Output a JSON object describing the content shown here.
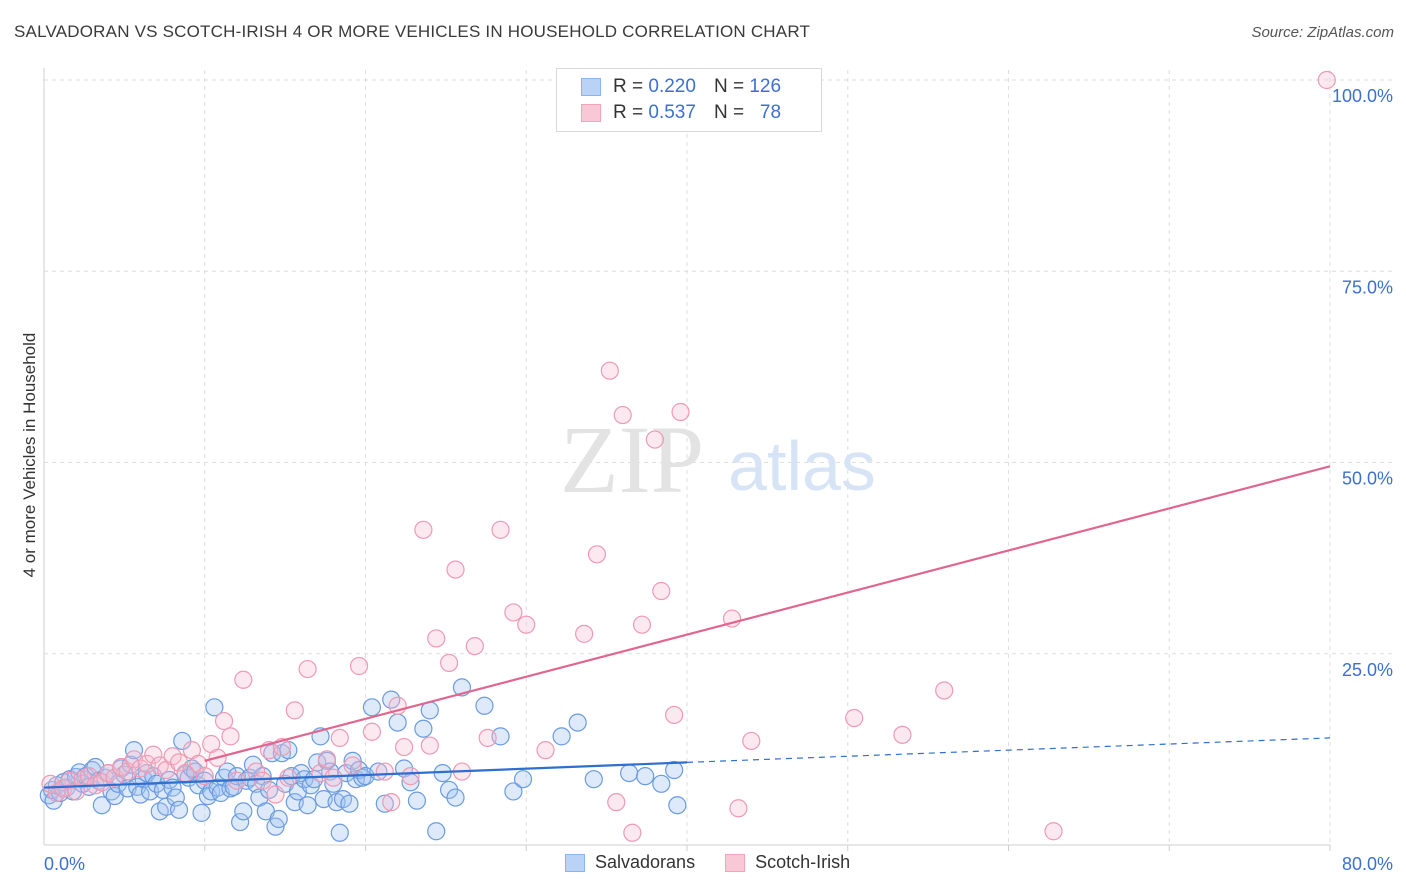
{
  "title": "SALVADORAN VS SCOTCH-IRISH 4 OR MORE VEHICLES IN HOUSEHOLD CORRELATION CHART",
  "source": "Source: ZipAtlas.com",
  "watermark": {
    "zip": "ZIP",
    "atlas": "atlas"
  },
  "legend": {
    "r_label": "R =",
    "n_label": "N =",
    "rows": [
      {
        "r": "0.220",
        "n": "126",
        "color": "#8ab4ef",
        "fill": "#b9d2f5"
      },
      {
        "r": "0.537",
        "n": "78",
        "color": "#f0a5bc",
        "fill": "#f9c8d6"
      }
    ]
  },
  "colors": {
    "salvadoran_stroke": "#6a9be0",
    "salvadoran_fill": "rgba(160,195,240,0.35)",
    "salvadoran_line": "#2f6fcf",
    "scotch_stroke": "#ee9ab3",
    "scotch_fill": "rgba(247,190,208,0.35)",
    "scotch_line": "#e0668e",
    "tick_text": "#3d6fd1",
    "grid": "#dedede"
  },
  "chart_data": {
    "type": "scatter",
    "title": "SALVADORAN VS SCOTCH-IRISH 4 OR MORE VEHICLES IN HOUSEHOLD CORRELATION CHART",
    "xlabel": "",
    "ylabel": "4 or more Vehicles in Household",
    "xlim": [
      0,
      80
    ],
    "ylim": [
      0,
      100
    ],
    "x_tick_labels": [
      {
        "value": 0,
        "label": "0.0%"
      },
      {
        "value": 80,
        "label": "80.0%"
      }
    ],
    "y_tick_labels": [
      {
        "value": 100,
        "label": "100.0%"
      },
      {
        "value": 75,
        "label": "75.0%"
      },
      {
        "value": 50,
        "label": "50.0%"
      },
      {
        "value": 25,
        "label": "25.0%"
      }
    ],
    "grid": true,
    "legend_position": "top-center",
    "series": [
      {
        "name": "Salvadorans",
        "trend": {
          "x_start": 0,
          "y_start": 7.5,
          "x_end": 40,
          "y_end": 10.8,
          "dashed_to_x": 80,
          "dashed_to_y": 14.0
        },
        "points": [
          [
            0.3,
            6.5
          ],
          [
            0.5,
            7.2
          ],
          [
            0.6,
            5.8
          ],
          [
            0.8,
            7.8
          ],
          [
            1.0,
            6.8
          ],
          [
            1.2,
            8.2
          ],
          [
            1.4,
            7.5
          ],
          [
            1.6,
            8.6
          ],
          [
            1.8,
            7.0
          ],
          [
            2.0,
            8.9
          ],
          [
            2.2,
            9.5
          ],
          [
            2.4,
            8.0
          ],
          [
            2.6,
            9.0
          ],
          [
            2.8,
            7.6
          ],
          [
            3.0,
            9.8
          ],
          [
            3.2,
            10.2
          ],
          [
            3.4,
            8.4
          ],
          [
            3.6,
            5.2
          ],
          [
            3.8,
            8.8
          ],
          [
            4.0,
            9.4
          ],
          [
            4.2,
            7.0
          ],
          [
            4.4,
            6.4
          ],
          [
            4.6,
            8.0
          ],
          [
            4.8,
            10.0
          ],
          [
            5.0,
            9.2
          ],
          [
            5.2,
            7.4
          ],
          [
            5.4,
            10.5
          ],
          [
            5.6,
            12.4
          ],
          [
            5.8,
            7.6
          ],
          [
            6.0,
            6.6
          ],
          [
            6.2,
            8.6
          ],
          [
            6.4,
            9.4
          ],
          [
            6.6,
            7.0
          ],
          [
            6.8,
            9.0
          ],
          [
            7.0,
            8.0
          ],
          [
            7.2,
            4.4
          ],
          [
            7.4,
            7.2
          ],
          [
            7.6,
            5.0
          ],
          [
            7.8,
            8.5
          ],
          [
            8.0,
            7.5
          ],
          [
            8.2,
            6.2
          ],
          [
            8.4,
            4.6
          ],
          [
            8.6,
            13.6
          ],
          [
            8.8,
            9.2
          ],
          [
            9.0,
            8.8
          ],
          [
            9.2,
            10.0
          ],
          [
            9.4,
            9.6
          ],
          [
            9.6,
            7.8
          ],
          [
            9.8,
            4.2
          ],
          [
            10.0,
            8.4
          ],
          [
            10.2,
            6.4
          ],
          [
            10.4,
            7.0
          ],
          [
            10.6,
            18.0
          ],
          [
            10.8,
            7.5
          ],
          [
            11.0,
            6.8
          ],
          [
            11.2,
            8.8
          ],
          [
            11.4,
            9.6
          ],
          [
            11.6,
            7.4
          ],
          [
            11.8,
            7.6
          ],
          [
            12.0,
            9.0
          ],
          [
            12.2,
            3.0
          ],
          [
            12.4,
            4.4
          ],
          [
            12.6,
            8.4
          ],
          [
            12.8,
            8.8
          ],
          [
            13.0,
            10.5
          ],
          [
            13.2,
            8.0
          ],
          [
            13.4,
            6.2
          ],
          [
            13.6,
            9.0
          ],
          [
            13.8,
            4.4
          ],
          [
            14.0,
            7.2
          ],
          [
            14.2,
            12.0
          ],
          [
            14.4,
            2.4
          ],
          [
            14.6,
            3.4
          ],
          [
            14.8,
            12.0
          ],
          [
            15.0,
            8.0
          ],
          [
            15.2,
            12.4
          ],
          [
            15.4,
            9.0
          ],
          [
            15.6,
            5.6
          ],
          [
            15.8,
            7.0
          ],
          [
            16.0,
            9.4
          ],
          [
            16.2,
            8.6
          ],
          [
            16.4,
            5.2
          ],
          [
            16.6,
            7.8
          ],
          [
            16.8,
            8.6
          ],
          [
            17.0,
            10.8
          ],
          [
            17.2,
            14.2
          ],
          [
            17.4,
            6.0
          ],
          [
            17.6,
            11.0
          ],
          [
            17.8,
            9.6
          ],
          [
            18.0,
            8.0
          ],
          [
            18.2,
            5.6
          ],
          [
            18.4,
            1.6
          ],
          [
            18.6,
            6.0
          ],
          [
            18.8,
            9.4
          ],
          [
            19.0,
            5.4
          ],
          [
            19.2,
            11.0
          ],
          [
            19.4,
            8.6
          ],
          [
            19.6,
            9.8
          ],
          [
            19.8,
            8.8
          ],
          [
            20.0,
            9.0
          ],
          [
            20.4,
            18.0
          ],
          [
            20.8,
            9.6
          ],
          [
            21.2,
            5.4
          ],
          [
            21.6,
            19.0
          ],
          [
            22.0,
            16.0
          ],
          [
            22.4,
            10.0
          ],
          [
            22.8,
            8.2
          ],
          [
            23.2,
            5.8
          ],
          [
            23.6,
            15.2
          ],
          [
            24.0,
            17.6
          ],
          [
            24.4,
            1.8
          ],
          [
            24.8,
            9.4
          ],
          [
            25.2,
            7.2
          ],
          [
            25.6,
            6.2
          ],
          [
            26.0,
            20.6
          ],
          [
            27.4,
            18.2
          ],
          [
            28.4,
            14.2
          ],
          [
            29.2,
            7.0
          ],
          [
            29.8,
            8.6
          ],
          [
            32.2,
            14.2
          ],
          [
            33.2,
            16.0
          ],
          [
            34.2,
            8.6
          ],
          [
            36.4,
            9.4
          ],
          [
            37.4,
            9.0
          ],
          [
            38.4,
            8.0
          ],
          [
            39.2,
            9.8
          ],
          [
            39.4,
            5.2
          ]
        ]
      },
      {
        "name": "Scotch-Irish",
        "trend": {
          "x_start": 10.0,
          "y_start": 11.0,
          "x_end": 80,
          "y_end": 49.5
        },
        "points": [
          [
            0.4,
            8.0
          ],
          [
            0.8,
            6.8
          ],
          [
            1.2,
            7.4
          ],
          [
            1.6,
            8.4
          ],
          [
            2.0,
            7.0
          ],
          [
            2.4,
            8.6
          ],
          [
            2.8,
            9.0
          ],
          [
            3.2,
            7.8
          ],
          [
            3.6,
            8.2
          ],
          [
            4.0,
            9.4
          ],
          [
            4.4,
            8.8
          ],
          [
            4.8,
            10.2
          ],
          [
            5.2,
            9.6
          ],
          [
            5.6,
            11.2
          ],
          [
            6.0,
            10.0
          ],
          [
            6.4,
            10.6
          ],
          [
            6.8,
            11.8
          ],
          [
            7.2,
            10.4
          ],
          [
            7.6,
            9.8
          ],
          [
            8.0,
            11.6
          ],
          [
            8.4,
            10.8
          ],
          [
            8.8,
            9.4
          ],
          [
            9.2,
            12.4
          ],
          [
            9.6,
            10.6
          ],
          [
            10.0,
            9.0
          ],
          [
            10.4,
            13.2
          ],
          [
            10.8,
            11.4
          ],
          [
            11.2,
            16.2
          ],
          [
            11.6,
            14.2
          ],
          [
            12.0,
            8.4
          ],
          [
            12.4,
            21.6
          ],
          [
            13.2,
            9.6
          ],
          [
            13.6,
            8.4
          ],
          [
            14.0,
            12.4
          ],
          [
            14.4,
            6.6
          ],
          [
            14.8,
            12.8
          ],
          [
            15.2,
            8.8
          ],
          [
            15.6,
            17.6
          ],
          [
            16.4,
            23.0
          ],
          [
            17.2,
            9.4
          ],
          [
            17.6,
            11.2
          ],
          [
            18.0,
            8.8
          ],
          [
            18.4,
            14.0
          ],
          [
            19.2,
            10.4
          ],
          [
            19.6,
            23.4
          ],
          [
            20.4,
            14.8
          ],
          [
            21.2,
            9.6
          ],
          [
            21.6,
            5.6
          ],
          [
            22.0,
            18.2
          ],
          [
            22.4,
            12.8
          ],
          [
            22.8,
            9.0
          ],
          [
            23.6,
            41.2
          ],
          [
            24.0,
            13.0
          ],
          [
            24.4,
            27.0
          ],
          [
            25.2,
            23.8
          ],
          [
            25.6,
            36.0
          ],
          [
            26.0,
            9.6
          ],
          [
            26.8,
            26.0
          ],
          [
            27.6,
            14.0
          ],
          [
            28.4,
            41.2
          ],
          [
            29.2,
            30.4
          ],
          [
            30.0,
            28.8
          ],
          [
            31.2,
            12.4
          ],
          [
            33.6,
            27.6
          ],
          [
            34.4,
            38.0
          ],
          [
            35.2,
            62.0
          ],
          [
            35.6,
            5.6
          ],
          [
            36.0,
            56.2
          ],
          [
            36.6,
            1.6
          ],
          [
            37.2,
            28.8
          ],
          [
            38.0,
            53.0
          ],
          [
            38.4,
            33.2
          ],
          [
            39.2,
            17.0
          ],
          [
            39.6,
            56.6
          ],
          [
            42.8,
            29.6
          ],
          [
            43.2,
            4.8
          ],
          [
            44.0,
            13.6
          ],
          [
            50.4,
            16.6
          ],
          [
            53.4,
            14.4
          ],
          [
            56.0,
            20.2
          ],
          [
            62.8,
            1.8
          ],
          [
            79.8,
            100.0
          ]
        ]
      }
    ]
  },
  "bottom_legend": [
    {
      "label": "Salvadorans"
    },
    {
      "label": "Scotch-Irish"
    }
  ]
}
